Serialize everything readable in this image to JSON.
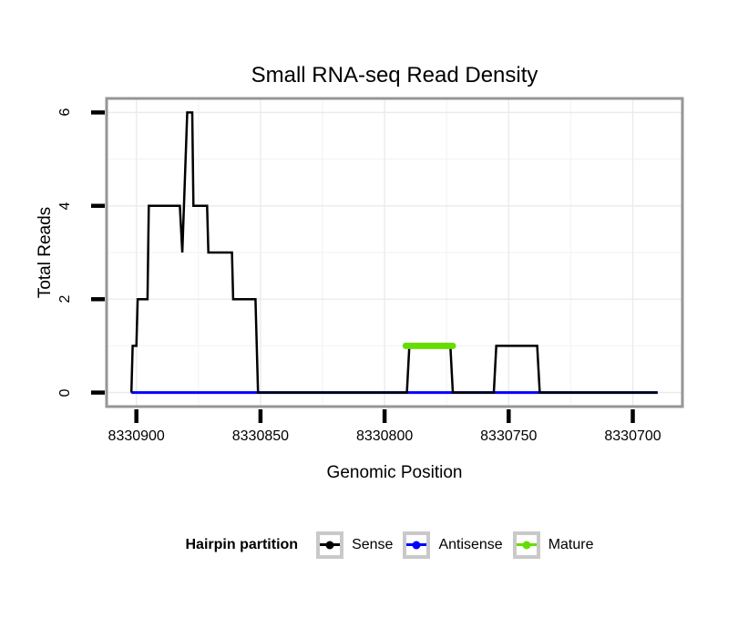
{
  "page": {
    "background": "#ffffff"
  },
  "chart_data": {
    "type": "line",
    "title": "Small RNA-seq Read Density",
    "xlabel": "Genomic Position",
    "ylabel": "Total Reads",
    "x_reversed": true,
    "xlim": [
      8330912,
      8330680
    ],
    "ylim": [
      -0.3,
      6.3
    ],
    "x_ticks": [
      8330900,
      8330850,
      8330800,
      8330750,
      8330700
    ],
    "x_tick_labels": [
      "8330900",
      "8330850",
      "8330800",
      "8330750",
      "8330700"
    ],
    "x_minor_ticks": [
      8330875,
      8330825,
      8330775,
      8330725
    ],
    "y_ticks": [
      0,
      2,
      4,
      6
    ],
    "y_tick_labels": [
      "0",
      "2",
      "4",
      "6"
    ],
    "y_minor_ticks": [
      1,
      3,
      5
    ],
    "grid": {
      "major_color": "#ebebeb",
      "minor_color": "#f5f5f5",
      "grid_on": true
    },
    "panel_border_color": "#969696",
    "tick_mark_color": "#000000",
    "legend": {
      "title": "Hairpin partition",
      "position": "bottom"
    },
    "series": [
      {
        "name": "Sense",
        "color": "#000000",
        "line_width": 2.5,
        "linecap": "butt",
        "z": 2,
        "points": [
          [
            8330902,
            0
          ],
          [
            8330901.5,
            1
          ],
          [
            8330900,
            1
          ],
          [
            8330899.5,
            2
          ],
          [
            8330895.5,
            2
          ],
          [
            8330895,
            4
          ],
          [
            8330882.5,
            4
          ],
          [
            8330881.5,
            3
          ],
          [
            8330879.5,
            6
          ],
          [
            8330877.5,
            6
          ],
          [
            8330877,
            4
          ],
          [
            8330871.5,
            4
          ],
          [
            8330871,
            3
          ],
          [
            8330861.5,
            3
          ],
          [
            8330861,
            2
          ],
          [
            8330852,
            2
          ],
          [
            8330851,
            0
          ],
          [
            8330791,
            0
          ],
          [
            8330790,
            1
          ],
          [
            8330773.5,
            1
          ],
          [
            8330772.5,
            0
          ],
          [
            8330756,
            0
          ],
          [
            8330755,
            1
          ],
          [
            8330738.5,
            1
          ],
          [
            8330737.5,
            0
          ],
          [
            8330690,
            0
          ]
        ]
      },
      {
        "name": "Antisense",
        "color": "#0000ff",
        "line_width": 3,
        "linecap": "butt",
        "z": 1,
        "points": [
          [
            8330902,
            0
          ],
          [
            8330690,
            0
          ]
        ]
      },
      {
        "name": "Mature",
        "color": "#66dd00",
        "line_width": 7,
        "linecap": "round",
        "z": 3,
        "points": [
          [
            8330791.5,
            1
          ],
          [
            8330772.5,
            1
          ]
        ]
      }
    ]
  }
}
